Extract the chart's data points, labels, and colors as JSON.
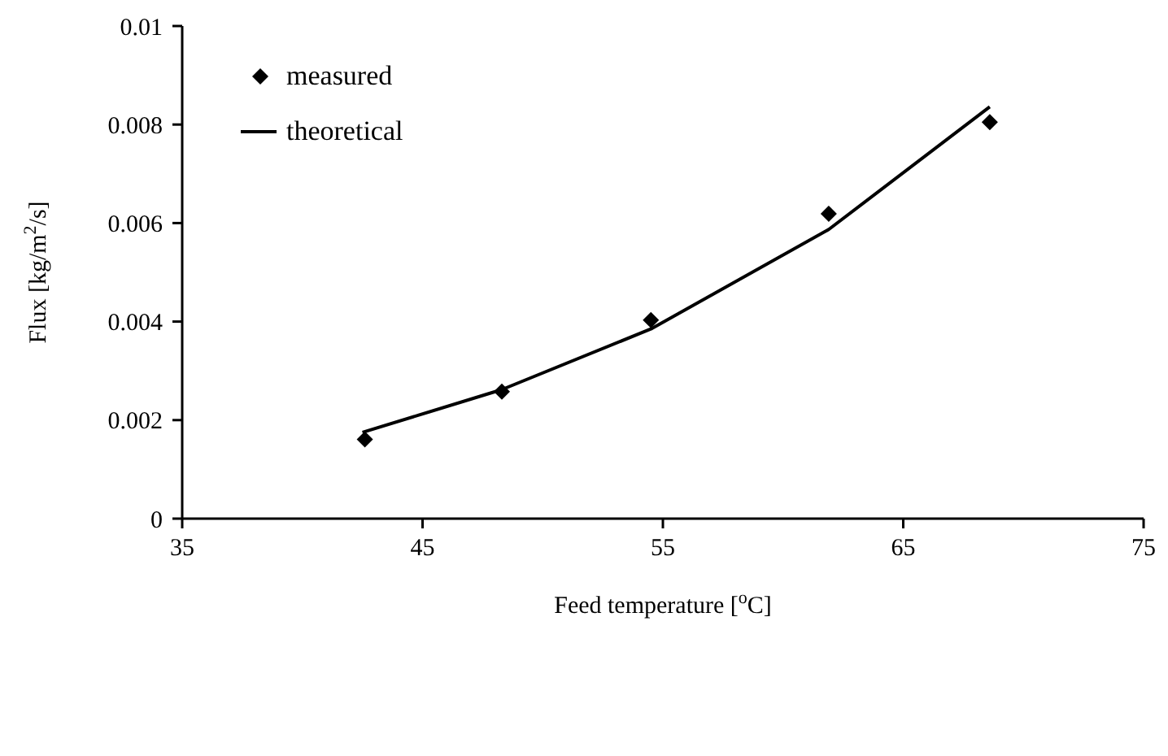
{
  "chart_data": {
    "type": "scatter",
    "xlabel": "Feed temperature [$^{o}$C]",
    "ylabel": "Flux [kg/m$^{2}$/s]",
    "xlim": [
      35,
      75
    ],
    "xticks": [
      35,
      45,
      55,
      65,
      75
    ],
    "ylim": [
      0,
      0.01
    ],
    "yticks": [
      0,
      0.002,
      0.004,
      0.006,
      0.008,
      0.01
    ],
    "grid": false,
    "legend": "top left",
    "series": [
      {
        "name": "measured",
        "marker": "diamond",
        "color": "#000000",
        "x": [
          42.6,
          48.3,
          54.5,
          61.9,
          68.6
        ],
        "values": [
          0.00161,
          0.00258,
          0.00403,
          0.00619,
          0.00805
        ]
      },
      {
        "name": "theoretical",
        "type": "line",
        "marker": "none",
        "line_style": "solid",
        "color": "#000000",
        "x": [
          42.5,
          48.3,
          54.5,
          61.9,
          68.6
        ],
        "values": [
          0.00175,
          0.00262,
          0.00385,
          0.00587,
          0.00836
        ]
      }
    ]
  }
}
